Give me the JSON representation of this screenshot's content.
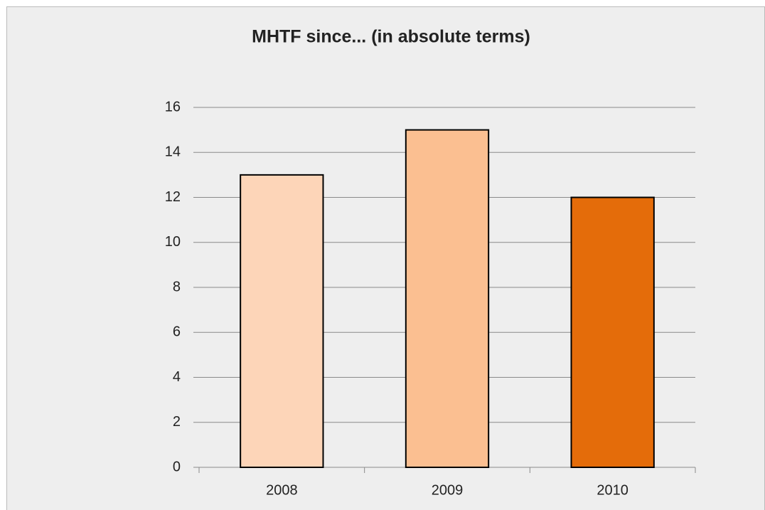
{
  "chart_data": {
    "type": "bar",
    "title": "MHTF since... (in absolute terms)",
    "categories": [
      "2008",
      "2009",
      "2010"
    ],
    "values": [
      13,
      15,
      12
    ],
    "colors": [
      "#fdd5b8",
      "#fbbf91",
      "#e46c0a"
    ],
    "ylim": [
      0,
      16
    ],
    "yticks": [
      0,
      2,
      4,
      6,
      8,
      10,
      12,
      14,
      16
    ],
    "grid": true
  }
}
